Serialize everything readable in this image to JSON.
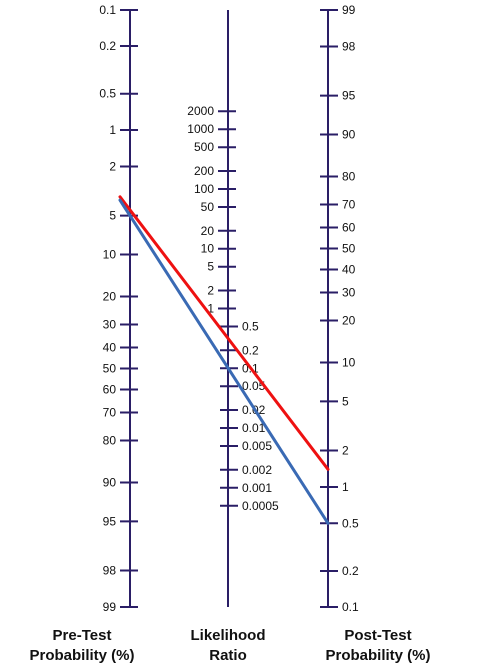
{
  "chart_data": {
    "type": "nomogram",
    "title": "",
    "axes": {
      "pretest": {
        "title_lines": [
          "Pre-Test",
          "Probability (%)"
        ],
        "tick_labels": [
          "0.1",
          "0.2",
          "0.5",
          "1",
          "2",
          "5",
          "10",
          "20",
          "30",
          "40",
          "50",
          "60",
          "70",
          "80",
          "90",
          "95",
          "98",
          "99"
        ]
      },
      "likelihood_ratio": {
        "title_lines": [
          "Likelihood",
          "Ratio"
        ],
        "ticks_above_one": [
          "2000",
          "1000",
          "500",
          "200",
          "100",
          "50",
          "20",
          "10",
          "5",
          "2",
          "1"
        ],
        "ticks_below_one": [
          "0.5",
          "0.2",
          "0.1",
          "0.05",
          "0.02",
          "0.01",
          "0.005",
          "0.002",
          "0.001",
          "0.0005"
        ]
      },
      "posttest": {
        "title_lines": [
          "Post-Test",
          "Probability (%)"
        ],
        "tick_labels": [
          "99",
          "98",
          "95",
          "90",
          "80",
          "70",
          "60",
          "50",
          "40",
          "30",
          "20",
          "10",
          "5",
          "2",
          "1",
          "0.5",
          "0.2",
          "0.1"
        ]
      }
    },
    "lines": [
      {
        "color": "#ee1111",
        "pretest_percent": 4.5,
        "likelihood_ratio": 0.3,
        "posttest_percent": 1.4
      },
      {
        "color": "#3a6ab4",
        "pretest_percent": 5,
        "likelihood_ratio": 0.1,
        "posttest_percent": 0.5
      }
    ],
    "axis_color": "#2a1e66"
  }
}
